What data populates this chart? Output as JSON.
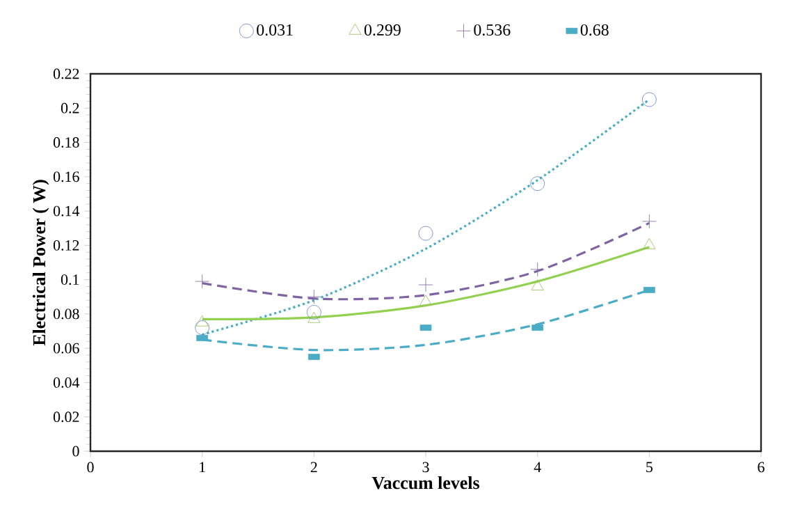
{
  "chart_data": {
    "type": "scatter",
    "xlabel": "Vaccum levels",
    "ylabel": "Electrical Power ( W)",
    "xlim": [
      0,
      6
    ],
    "xticks": [
      0,
      1,
      2,
      3,
      4,
      5,
      6
    ],
    "ylim": [
      0,
      0.22
    ],
    "yticks": [
      0,
      0.02,
      0.04,
      0.06,
      0.08,
      0.1,
      0.12,
      0.14,
      0.16,
      0.18,
      0.2,
      0.22
    ],
    "legend": "top",
    "grid": false,
    "series": [
      {
        "name": "0.031",
        "color": "#5b7fc4",
        "marker": "circle",
        "x": [
          1,
          2,
          3,
          4,
          5
        ],
        "values": [
          0.072,
          0.081,
          0.127,
          0.156,
          0.205
        ]
      },
      {
        "name": "0.299",
        "color": "#9bbb59",
        "marker": "triangle",
        "x": [
          1,
          2,
          3,
          4,
          5
        ],
        "values": [
          0.075,
          0.077,
          0.087,
          0.096,
          0.12
        ]
      },
      {
        "name": "0.536",
        "color": "#8064a2",
        "marker": "plus",
        "x": [
          1,
          2,
          3,
          4,
          5
        ],
        "values": [
          0.099,
          0.09,
          0.097,
          0.106,
          0.134
        ]
      },
      {
        "name": "0.68",
        "color": "#4bacc6",
        "marker": "square",
        "x": [
          1,
          2,
          3,
          4,
          5
        ],
        "values": [
          0.066,
          0.055,
          0.072,
          0.072,
          0.094
        ]
      },
      {
        "type": "line",
        "color": "#4bacc6",
        "line_style": "dotted",
        "x": [
          1,
          2,
          3,
          4,
          5
        ],
        "values": [
          0.068,
          0.088,
          0.118,
          0.158,
          0.205
        ]
      },
      {
        "type": "line",
        "color": "#92d050",
        "line_style": "solid",
        "x": [
          1,
          2,
          3,
          4,
          5
        ],
        "values": [
          0.077,
          0.078,
          0.085,
          0.099,
          0.119
        ]
      },
      {
        "type": "line",
        "color": "#8064a2",
        "line_style": "dashed",
        "x": [
          1,
          2,
          3,
          4,
          5
        ],
        "values": [
          0.098,
          0.089,
          0.091,
          0.105,
          0.133
        ]
      },
      {
        "type": "line",
        "color": "#4bacc6",
        "line_style": "dashed",
        "x": [
          1,
          2,
          3,
          4,
          5
        ],
        "values": [
          0.065,
          0.059,
          0.062,
          0.074,
          0.094
        ]
      }
    ]
  }
}
